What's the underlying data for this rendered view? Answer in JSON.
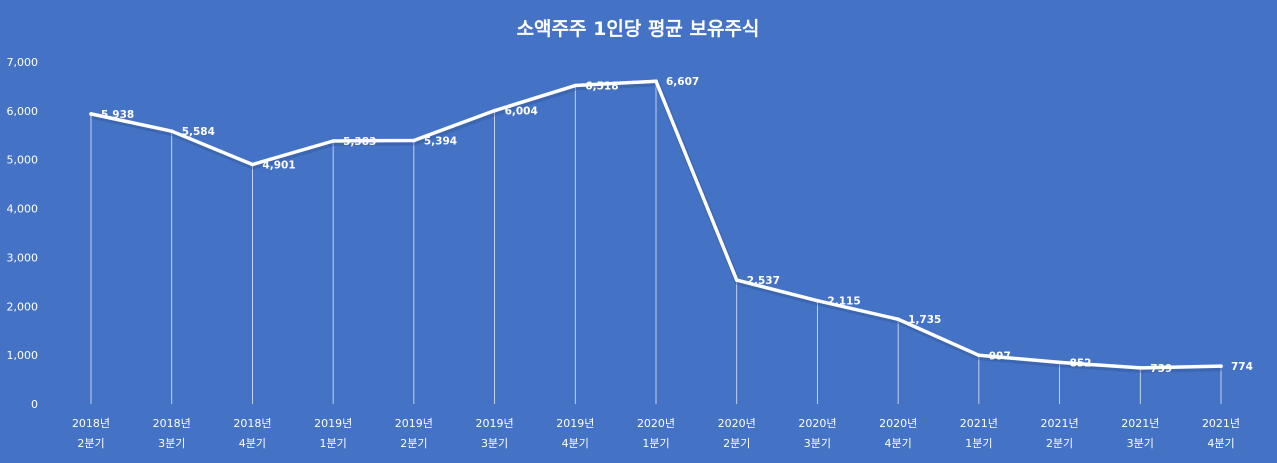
{
  "chart_data": {
    "type": "line",
    "title": "소액주주 1인당 평균 보유주식",
    "xlabel": "",
    "ylabel": "",
    "ylim": [
      0,
      7000
    ],
    "yticks": [
      "0",
      "1,000",
      "2,000",
      "3,000",
      "4,000",
      "5,000",
      "6,000",
      "7,000"
    ],
    "categories": [
      [
        "2018년",
        "2분기"
      ],
      [
        "2018년",
        "3분기"
      ],
      [
        "2018년",
        "4분기"
      ],
      [
        "2019년",
        "1분기"
      ],
      [
        "2019년",
        "2분기"
      ],
      [
        "2019년",
        "3분기"
      ],
      [
        "2019년",
        "4분기"
      ],
      [
        "2020년",
        "1분기"
      ],
      [
        "2020년",
        "2분기"
      ],
      [
        "2020년",
        "3분기"
      ],
      [
        "2020년",
        "4분기"
      ],
      [
        "2021년",
        "1분기"
      ],
      [
        "2021년",
        "2분기"
      ],
      [
        "2021년",
        "3분기"
      ],
      [
        "2021년",
        "4분기"
      ]
    ],
    "series": [
      {
        "values": [
          5938,
          5584,
          4901,
          5383,
          5394,
          6004,
          6518,
          6607,
          2537,
          2115,
          1735,
          997,
          852,
          739,
          774
        ],
        "labels": [
          "5,938",
          "5,584",
          "4,901",
          "5,383",
          "5,394",
          "6,004",
          "6,518",
          "6,607",
          "2,537",
          "2,115",
          "1,735",
          "997",
          "852",
          "739",
          "774"
        ]
      }
    ],
    "drop_lines": true,
    "legend": "none",
    "grid": false,
    "colors": {
      "background": "#4472c4",
      "line": "#ffffff",
      "text": "#ffffff"
    }
  }
}
